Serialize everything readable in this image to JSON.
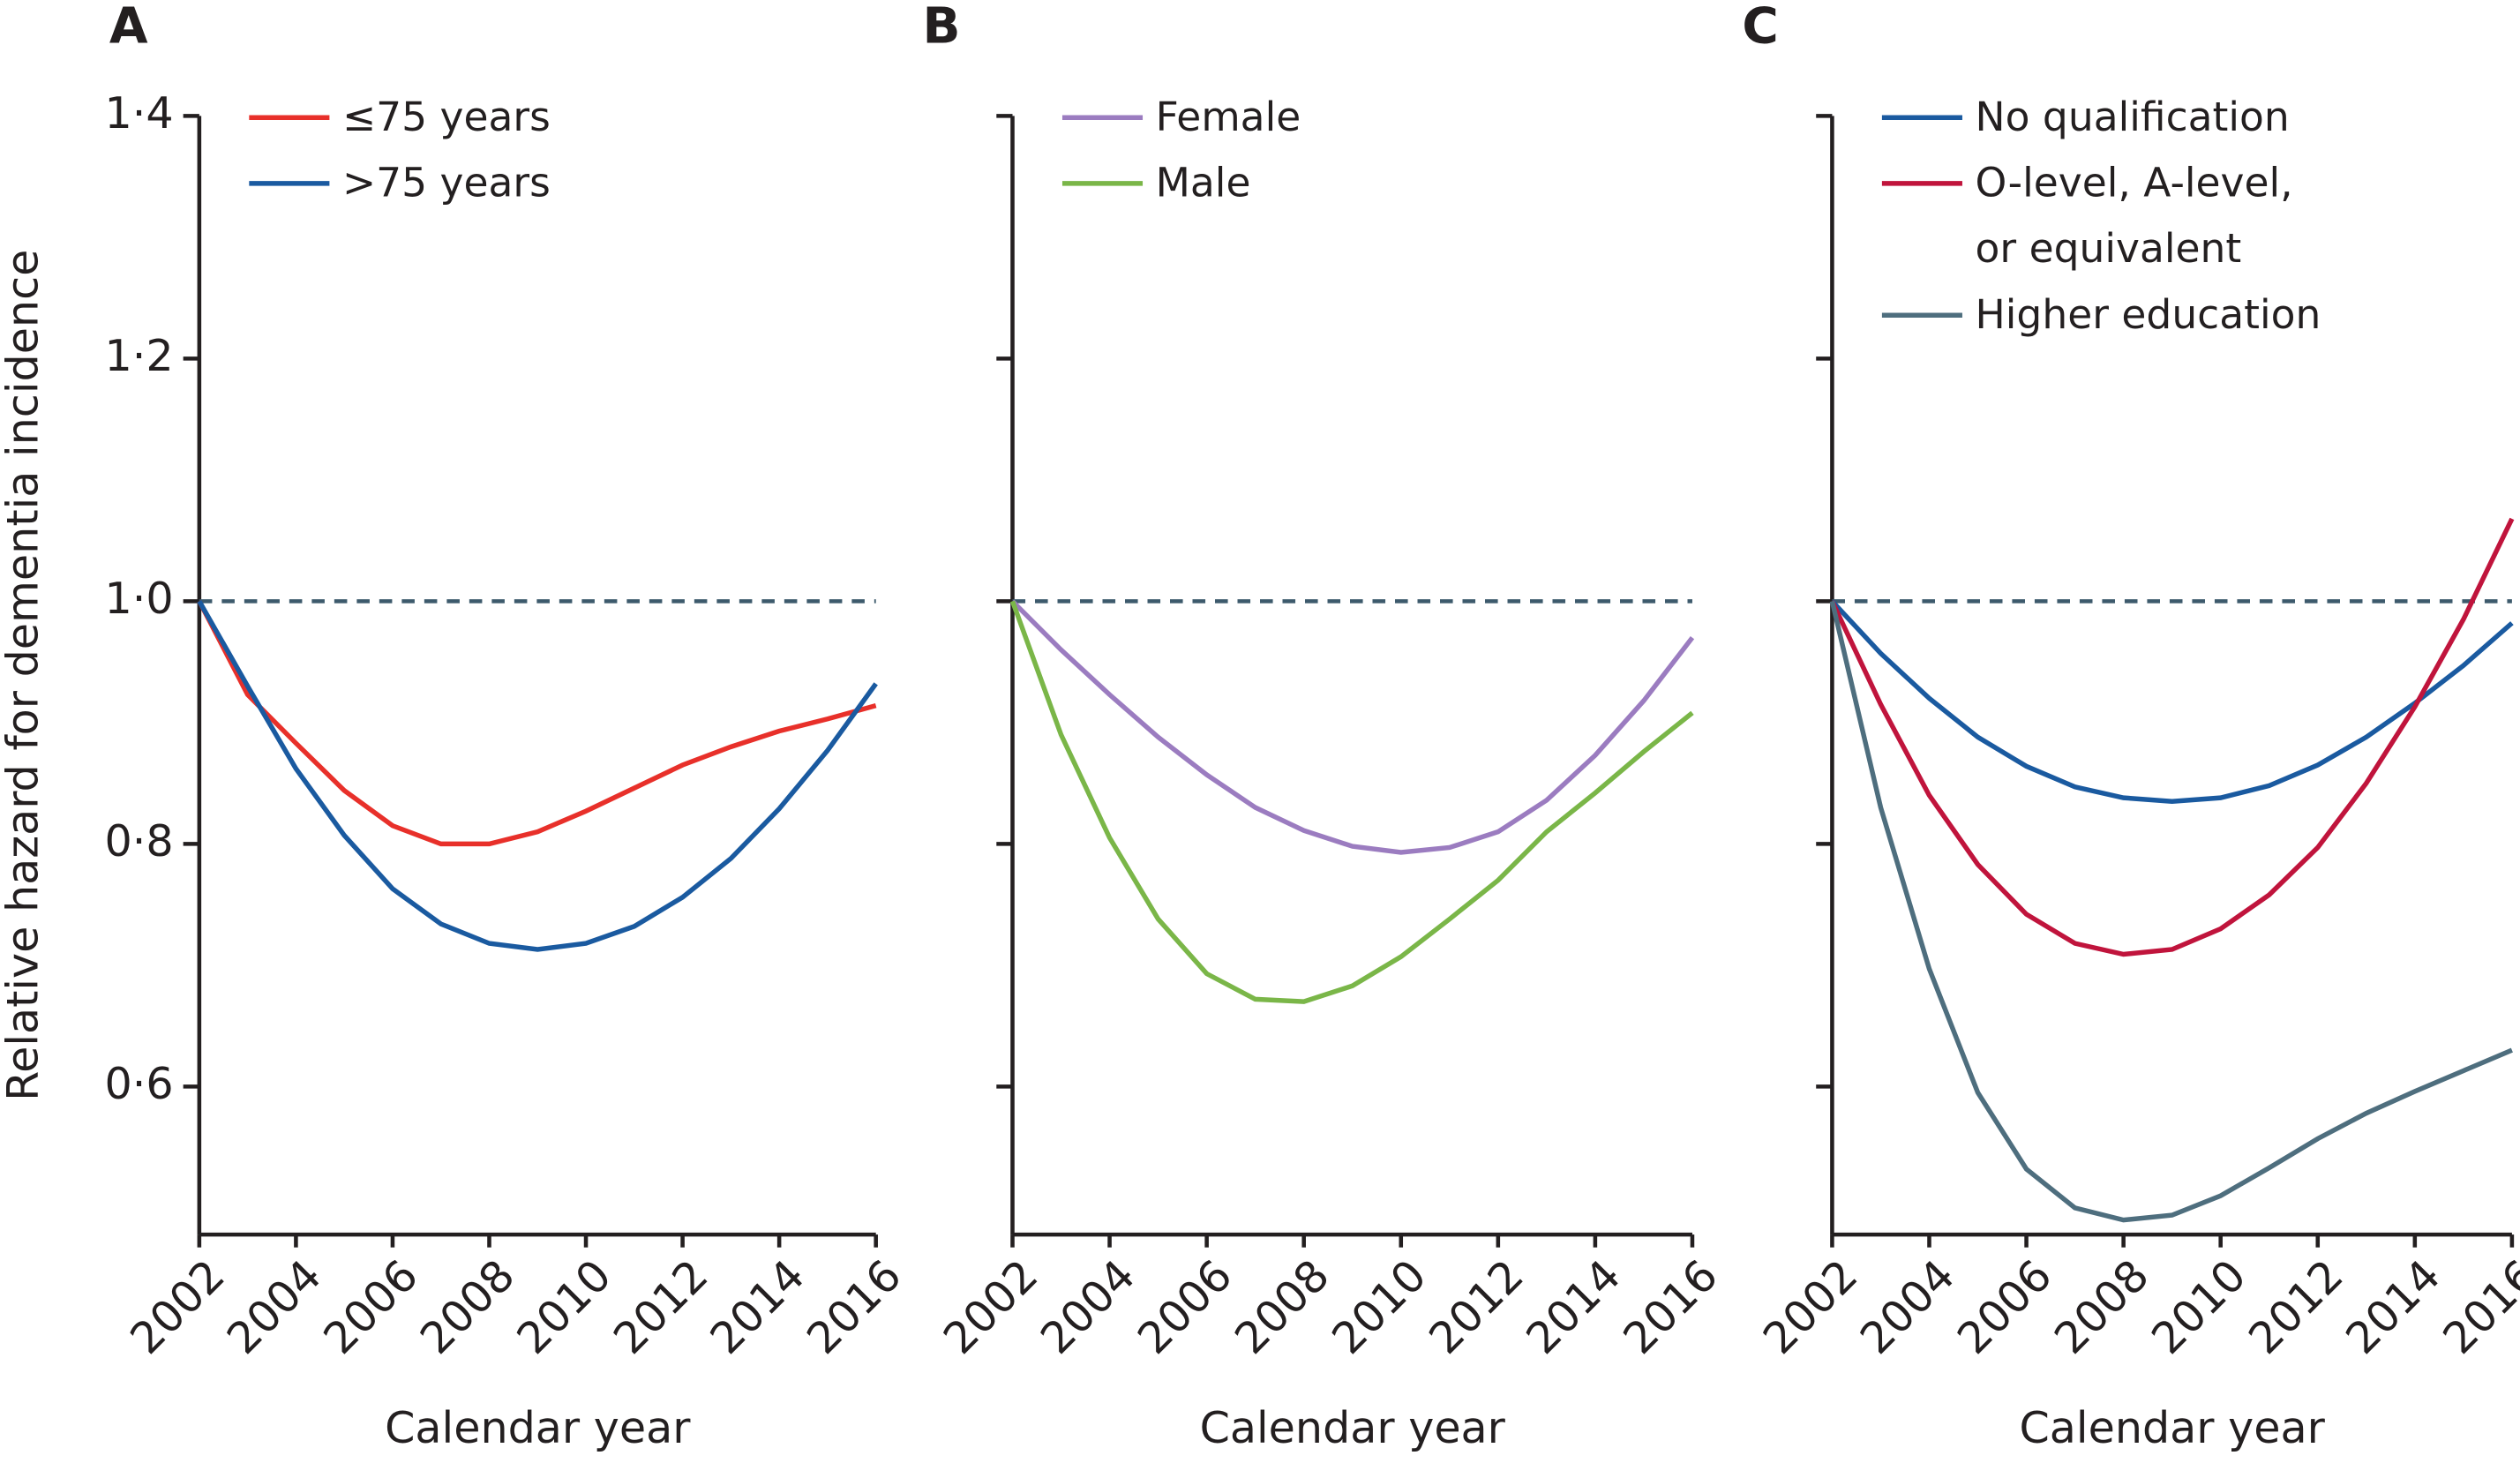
{
  "chart_data": [
    {
      "type": "line",
      "panel_label": "A",
      "y_label": "Relative hazard for dementia incidence",
      "x_label": "Calendar year",
      "x": [
        2002,
        2003,
        2004,
        2005,
        2006,
        2007,
        2008,
        2009,
        2010,
        2011,
        2012,
        2013,
        2014,
        2015,
        2016
      ],
      "xlim": [
        2002,
        2016
      ],
      "xticks": [
        2002,
        2004,
        2006,
        2008,
        2010,
        2012,
        2014,
        2016
      ],
      "ylim": [
        0.478,
        1.4
      ],
      "yticks": [
        {
          "value": 0.6,
          "label": "0·6"
        },
        {
          "value": 0.8,
          "label": "0·8"
        },
        {
          "value": 1.0,
          "label": "1·0"
        },
        {
          "value": 1.2,
          "label": "1·2"
        },
        {
          "value": 1.4,
          "label": "1·4"
        }
      ],
      "reference_line": 1.0,
      "legend": "upper left",
      "series": [
        {
          "name": "≤75 years",
          "color": "#e8302a",
          "values": [
            1.0,
            0.923,
            0.883,
            0.844,
            0.815,
            0.8,
            0.8,
            0.81,
            0.827,
            0.846,
            0.865,
            0.88,
            0.893,
            0.903,
            0.914
          ]
        },
        {
          "name": ">75 years",
          "color": "#1a5aa0",
          "values": [
            1.0,
            0.93,
            0.862,
            0.807,
            0.763,
            0.734,
            0.718,
            0.713,
            0.718,
            0.732,
            0.756,
            0.788,
            0.829,
            0.877,
            0.932
          ]
        }
      ]
    },
    {
      "type": "line",
      "panel_label": "B",
      "x_label": "Calendar year",
      "x": [
        2002,
        2003,
        2004,
        2005,
        2006,
        2007,
        2008,
        2009,
        2010,
        2011,
        2012,
        2013,
        2014,
        2015,
        2016
      ],
      "xlim": [
        2002,
        2016
      ],
      "xticks": [
        2002,
        2004,
        2006,
        2008,
        2010,
        2012,
        2014,
        2016
      ],
      "ylim": [
        0.478,
        1.4
      ],
      "yticks": [
        0.6,
        0.8,
        1.0,
        1.2,
        1.4
      ],
      "reference_line": 1.0,
      "legend": "upper left",
      "series": [
        {
          "name": "Female",
          "color": "#9b7cc0",
          "values": [
            1.0,
            0.96,
            0.923,
            0.888,
            0.857,
            0.83,
            0.811,
            0.798,
            0.793,
            0.797,
            0.81,
            0.836,
            0.873,
            0.918,
            0.97
          ]
        },
        {
          "name": "Male",
          "color": "#7ab648",
          "values": [
            1.0,
            0.89,
            0.805,
            0.738,
            0.693,
            0.672,
            0.67,
            0.683,
            0.707,
            0.738,
            0.77,
            0.81,
            0.842,
            0.876,
            0.908
          ]
        }
      ]
    },
    {
      "type": "line",
      "panel_label": "C",
      "x_label": "Calendar year",
      "x": [
        2002,
        2003,
        2004,
        2005,
        2006,
        2007,
        2008,
        2009,
        2010,
        2011,
        2012,
        2013,
        2014,
        2015,
        2016
      ],
      "xlim": [
        2002,
        2016
      ],
      "xticks": [
        2002,
        2004,
        2006,
        2008,
        2010,
        2012,
        2014,
        2016
      ],
      "ylim": [
        0.478,
        1.4
      ],
      "yticks": [
        0.6,
        0.8,
        1.0,
        1.2,
        1.4
      ],
      "reference_line": 1.0,
      "legend": "upper left",
      "series": [
        {
          "name": "No qualification",
          "color": "#1a5aa0",
          "values": [
            1.0,
            0.957,
            0.92,
            0.888,
            0.864,
            0.847,
            0.838,
            0.835,
            0.838,
            0.848,
            0.865,
            0.888,
            0.916,
            0.947,
            0.982
          ]
        },
        {
          "name": "O-level, A-level, or equivalent",
          "color": "#c0143c",
          "values": [
            1.0,
            0.915,
            0.84,
            0.783,
            0.742,
            0.718,
            0.709,
            0.713,
            0.73,
            0.758,
            0.797,
            0.85,
            0.913,
            0.985,
            1.068
          ]
        },
        {
          "name": "Higher education",
          "color": "#4e6e7e",
          "values": [
            1.0,
            0.83,
            0.697,
            0.595,
            0.532,
            0.5,
            0.49,
            0.494,
            0.51,
            0.533,
            0.557,
            0.578,
            0.596,
            0.613,
            0.63
          ]
        }
      ]
    }
  ]
}
